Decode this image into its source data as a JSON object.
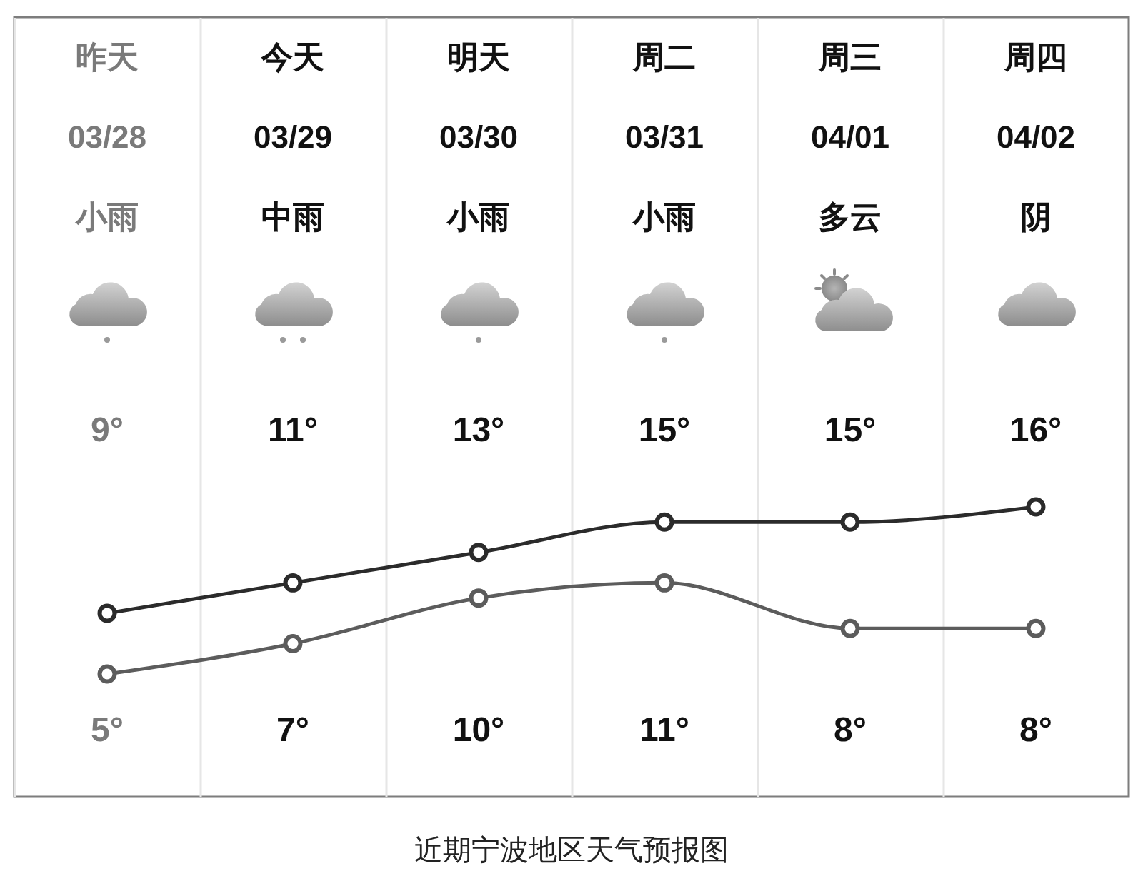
{
  "chart_data": {
    "type": "line",
    "categories": [
      "昨天\n03/28\n小雨",
      "今天\n03/29\n中雨",
      "明天\n03/30\n小雨",
      "周二\n03/31\n小雨",
      "周三\n04/01\n多云",
      "周四\n04/02\n阴"
    ],
    "series": [
      {
        "color": "#2b2b2b",
        "values": [
          9,
          11,
          13,
          15,
          15,
          16
        ],
        "value_labels": [
          "9°",
          "11°",
          "13°",
          "15°",
          "15°",
          "16°"
        ]
      },
      {
        "color": "#5c5c5c",
        "values": [
          5,
          7,
          10,
          11,
          8,
          8
        ],
        "value_labels": [
          "5°",
          "7°",
          "10°",
          "11°",
          "8°",
          "8°"
        ]
      }
    ],
    "marker": "circle",
    "grid": "x",
    "tick_labels": "x",
    "annotations": [
      "近期宁波地区天气预报图"
    ]
  }
}
